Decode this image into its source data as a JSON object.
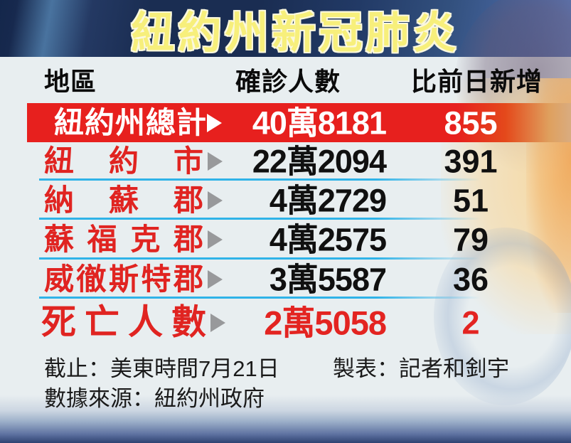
{
  "title": "紐約州新冠肺炎",
  "table": {
    "headers": [
      "地區",
      "確診人數",
      "比前日新增"
    ],
    "rows": [
      {
        "region": "紐約州總計",
        "confirmed": "40萬8181",
        "delta": "855",
        "style": "total"
      },
      {
        "region": "紐約市",
        "confirmed": "22萬2094",
        "delta": "391",
        "style": "normal"
      },
      {
        "region": "納蘇郡",
        "confirmed": "4萬2729",
        "delta": "51",
        "style": "normal"
      },
      {
        "region": "蘇福克郡",
        "confirmed": "4萬2575",
        "delta": "79",
        "style": "normal"
      },
      {
        "region": "威徹斯特郡",
        "confirmed": "3萬5587",
        "delta": "36",
        "style": "normal"
      },
      {
        "region": "死亡人數",
        "confirmed": "2萬5058",
        "delta": "2",
        "style": "deaths"
      }
    ]
  },
  "footer": {
    "cutoff": "截止：美東時間7月21日",
    "credit": "製表：記者和釗宇",
    "source": "數據來源：紐約州政府"
  },
  "icons": {
    "row_marker": "arrow-right-icon"
  },
  "colors": {
    "banner_navy": "#1a2d52",
    "banner_streak": "#49739f",
    "title_yellow": "#f7ef7b",
    "table_background": "#e8eef0",
    "total_row_red": "#e7201e",
    "region_text_red": "#e02421",
    "separator_cyan": "#2fb3e8",
    "arrow_gray": "#98999b",
    "number_black": "#101010",
    "bottom_fade_navy": "#2e4271"
  }
}
